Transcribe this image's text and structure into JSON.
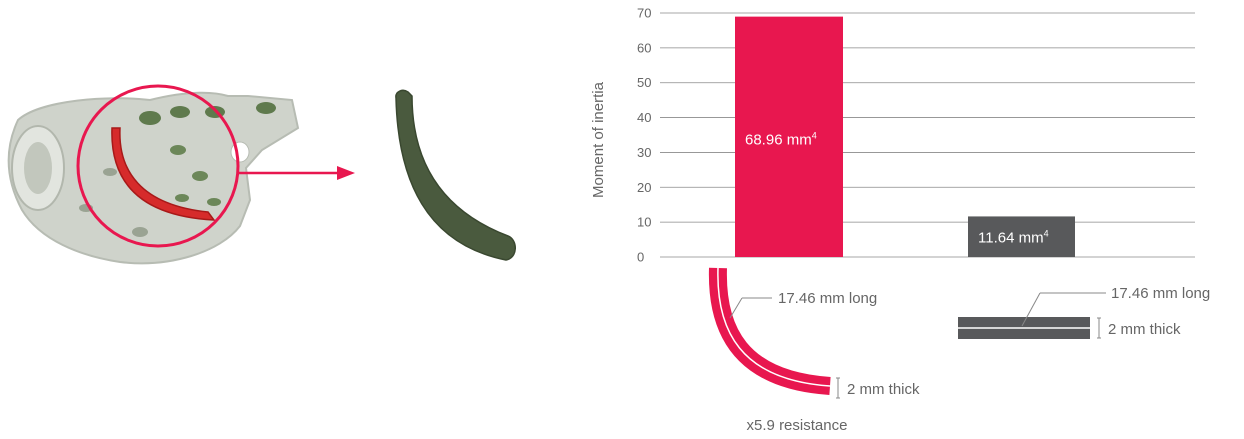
{
  "chart_data": {
    "type": "bar",
    "ylabel": "Moment of inertia",
    "ylim": [
      0,
      70
    ],
    "yticks": [
      "0",
      "10",
      "20",
      "30",
      "40",
      "50",
      "60",
      "70"
    ],
    "grid": true,
    "series": [
      {
        "values": [
          68.96,
          11.64
        ],
        "colors": [
          "#e8174f",
          "#58595b"
        ],
        "labels": [
          "68.96 mm",
          "11.64 mm"
        ],
        "label_superscript": "4"
      }
    ]
  },
  "annotations": {
    "curved": {
      "length_label": "17.46 mm long",
      "thickness_label": "2 mm thick",
      "resistance_label": "x5.9 resistance"
    },
    "flat": {
      "length_label": "17.46 mm long",
      "thickness_label": "2 mm thick"
    }
  },
  "colors": {
    "accent": "#e8174f",
    "dark": "#58595b",
    "implant_green": "#4a5a3e",
    "implant_silver": "#c8ccc4"
  },
  "illustration": {
    "implant_icon": "implant-plate-icon",
    "section_icon": "curved-section-icon",
    "arrow_icon": "arrow-right-icon"
  }
}
